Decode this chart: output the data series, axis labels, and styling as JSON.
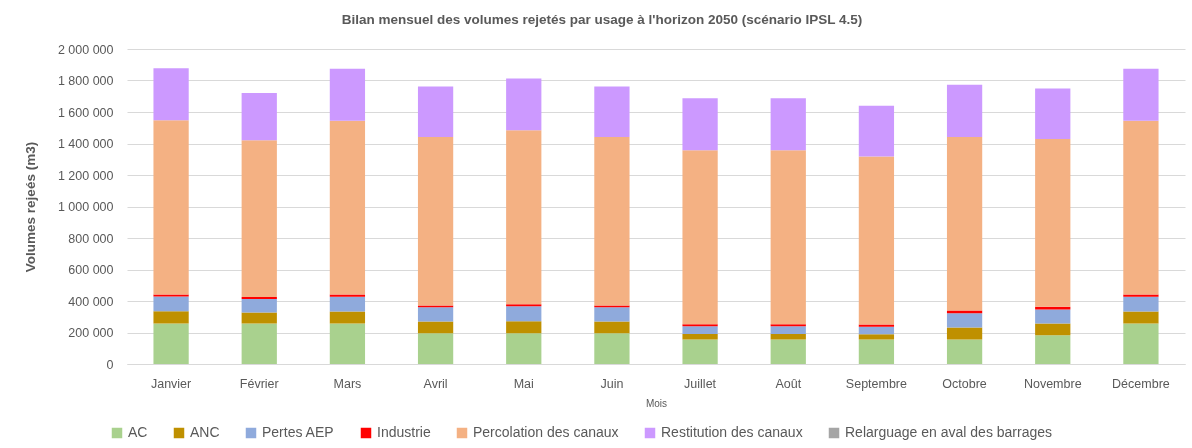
{
  "chart_data": {
    "type": "bar",
    "title": "Bilan mensuel des volumes rejetés par usage à l'horizon 2050 (scénario IPSL 4.5)",
    "xlabel": "Mois",
    "ylabel": "Volumes rejeés (m3)",
    "categories": [
      "Janvier",
      "Février",
      "Mars",
      "Avril",
      "Mai",
      "Juin",
      "Juillet",
      "Août",
      "Septembre",
      "Octobre",
      "Novembre",
      "Décembre"
    ],
    "stacked": true,
    "series": [
      {
        "name": "AC",
        "color": "#a9d18e",
        "values": [
          257000,
          257000,
          257000,
          195000,
          195000,
          195000,
          155000,
          155000,
          155000,
          155000,
          183000,
          257000
        ]
      },
      {
        "name": "ANC",
        "color": "#bf9000",
        "values": [
          78000,
          70000,
          76000,
          75000,
          77000,
          75000,
          36000,
          36000,
          34000,
          76000,
          74000,
          76000
        ]
      },
      {
        "name": "Pertes AEP",
        "color": "#8faadc",
        "values": [
          94000,
          85000,
          94000,
          91000,
          95000,
          91000,
          49000,
          49000,
          47000,
          92000,
          89000,
          94000
        ]
      },
      {
        "name": "Industrie",
        "color": "#ff0000",
        "values": [
          13000,
          13000,
          15000,
          11000,
          13000,
          11000,
          13000,
          13000,
          15000,
          17000,
          17000,
          15000
        ]
      },
      {
        "name": "Percolation des canaux",
        "color": "#f4b183",
        "values": [
          1106000,
          995000,
          1102000,
          1070000,
          1104000,
          1070000,
          1104000,
          1104000,
          1067000,
          1102000,
          1066000,
          1102000
        ]
      },
      {
        "name": "Restitution des canaux",
        "color": "#cc99ff",
        "values": [
          329000,
          300000,
          331000,
          320000,
          329000,
          320000,
          331000,
          331000,
          321000,
          331000,
          320000,
          331000
        ]
      },
      {
        "name": "Relarguage en aval des barrages",
        "color": "#a5a5a5",
        "values": [
          null,
          null,
          null,
          null,
          null,
          null,
          null,
          null,
          null,
          null,
          null,
          null
        ]
      }
    ],
    "ylim": [
      0,
      2000000
    ],
    "yticks": [
      0,
      {
        "value": 200000,
        "label": "200 000"
      },
      {
        "value": 400000,
        "label": "400 000"
      },
      {
        "value": 600000,
        "label": "600 000"
      },
      {
        "value": 800000,
        "label": "800 000"
      },
      {
        "value": 1000000,
        "label": "1 000 000"
      },
      {
        "value": 1200000,
        "label": "1 200 000"
      },
      {
        "value": 1400000,
        "label": "1 400 000"
      },
      {
        "value": 1600000,
        "label": "1 600 000"
      },
      {
        "value": 1800000,
        "label": "1 800 000"
      },
      {
        "value": 2000000,
        "label": "2 000 000"
      }
    ],
    "grid": "y",
    "legend": "bottom"
  }
}
